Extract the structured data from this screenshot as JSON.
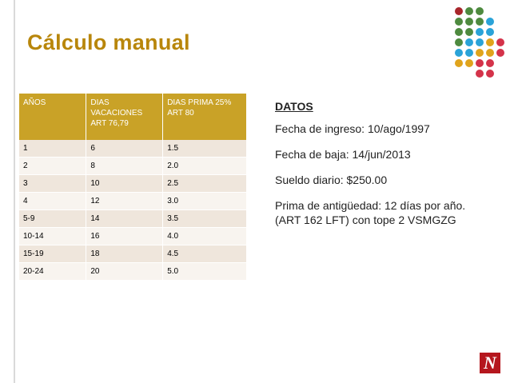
{
  "title": "Cálculo manual",
  "table": {
    "headers": [
      "AÑOS",
      "DIAS VACACIONES ART 76,79",
      "DIAS PRIMA 25%  ART 80"
    ],
    "rows": [
      [
        "1",
        "6",
        "1.5"
      ],
      [
        "2",
        "8",
        "2.0"
      ],
      [
        "3",
        "10",
        "2.5"
      ],
      [
        "4",
        "12",
        "3.0"
      ],
      [
        "5-9",
        "14",
        "3.5"
      ],
      [
        "10-14",
        "16",
        "4.0"
      ],
      [
        "15-19",
        "18",
        "4.5"
      ],
      [
        "20-24",
        "20",
        "5.0"
      ]
    ],
    "header_color": "#c9a227"
  },
  "datos": {
    "heading": "DATOS",
    "lines": [
      "Fecha de ingreso: 10/ago/1997",
      "Fecha de baja: 14/jun/2013",
      "Sueldo diario: $250.00",
      "Prima de antigüedad: 12 días por año. (ART 162 LFT) con tope 2 VSMGZG"
    ]
  },
  "logo": {
    "icon": "n-logo-icon",
    "color": "#b5171e"
  },
  "decoration": {
    "icon": "dot-grid-icon",
    "colors": [
      "#a8262b",
      "#4e8a3f",
      "#2aa3d8",
      "#e0a41c",
      "#d4334a"
    ]
  },
  "colors": {
    "title": "#b8860b",
    "row_odd": "#efe6dc",
    "row_even": "#f8f4ef"
  }
}
